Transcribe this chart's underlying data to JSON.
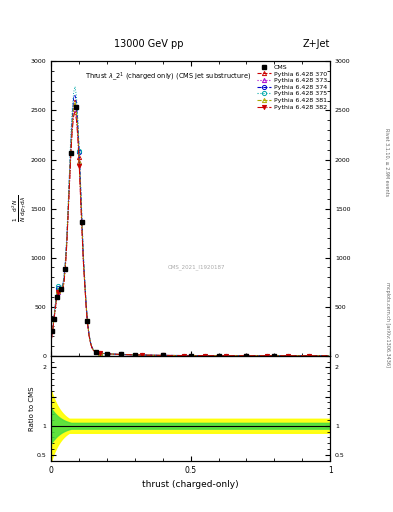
{
  "title_top": "13000 GeV pp",
  "title_right": "Z+Jet",
  "plot_title": "Thrust $\\lambda\\_2^1$ (charged only) (CMS jet substructure)",
  "xlabel": "thrust (charged-only)",
  "ylabel_ratio": "Ratio to CMS",
  "right_label_top": "Rivet 3.1.10, ≥ 2.9M events",
  "right_label_bottom": "mcplots.cern.ch [arXiv:1306.3436]",
  "watermark": "CMS_2021_I1920187",
  "cms_label": "CMS",
  "series": [
    {
      "label": "Pythia 6.428 370",
      "color": "#cc0000",
      "linestyle": "--",
      "marker": "^",
      "mfc": "none"
    },
    {
      "label": "Pythia 6.428 373",
      "color": "#aa00cc",
      "linestyle": ":",
      "marker": "^",
      "mfc": "none"
    },
    {
      "label": "Pythia 6.428 374",
      "color": "#0000cc",
      "linestyle": "--",
      "marker": "o",
      "mfc": "none"
    },
    {
      "label": "Pythia 6.428 375",
      "color": "#00aaaa",
      "linestyle": ":",
      "marker": "o",
      "mfc": "none"
    },
    {
      "label": "Pythia 6.428 381",
      "color": "#aaaa00",
      "linestyle": "--",
      "marker": "^",
      "mfc": "none"
    },
    {
      "label": "Pythia 6.428 382",
      "color": "#cc0000",
      "linestyle": "-.",
      "marker": "v",
      "mfc": "#cc0000"
    }
  ],
  "xlim": [
    0,
    1
  ],
  "ylim_main": [
    0,
    3000
  ],
  "ylim_ratio": [
    0.4,
    2.2
  ],
  "yticks_main": [
    0,
    500,
    1000,
    1500,
    2000,
    2500,
    3000
  ],
  "ratio_yticks": [
    0.5,
    1.0,
    1.5,
    2.0
  ],
  "ratio_yticklabels": [
    "0.5",
    "1",
    "",
    "2"
  ],
  "green_band": 0.05,
  "yellow_band": 0.12
}
